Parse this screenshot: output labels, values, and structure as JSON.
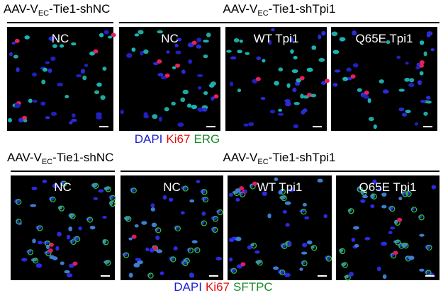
{
  "rows": [
    {
      "groups": [
        {
          "prefix": "AAV-V",
          "subscript": "EC",
          "suffix": "-Tie1-shNC"
        },
        {
          "prefix": "AAV-V",
          "subscript": "EC",
          "suffix": "-Tie1-shTpi1"
        }
      ],
      "panels": [
        "NC",
        "NC",
        "WT Tpi1",
        "Q65E Tpi1"
      ],
      "legend": [
        {
          "text": "DAPI",
          "color": "#1f1fd0"
        },
        {
          "text": "Ki67",
          "color": "#e01010"
        },
        {
          "text": "ERG",
          "color": "#1a8a2a"
        }
      ]
    },
    {
      "groups": [
        {
          "prefix": "AAV-V",
          "subscript": "EC",
          "suffix": "-Tie1-shNC"
        },
        {
          "prefix": "AAV-V",
          "subscript": "EC",
          "suffix": "-Tie1-shTpi1"
        }
      ],
      "panels": [
        "NC",
        "NC",
        "WT Tpi1",
        "Q65E Tpi1"
      ],
      "legend": [
        {
          "text": "DAPI",
          "color": "#1f1fd0"
        },
        {
          "text": "Ki67",
          "color": "#e01010"
        },
        {
          "text": "SFTPC",
          "color": "#1a8a2a"
        }
      ]
    }
  ]
}
